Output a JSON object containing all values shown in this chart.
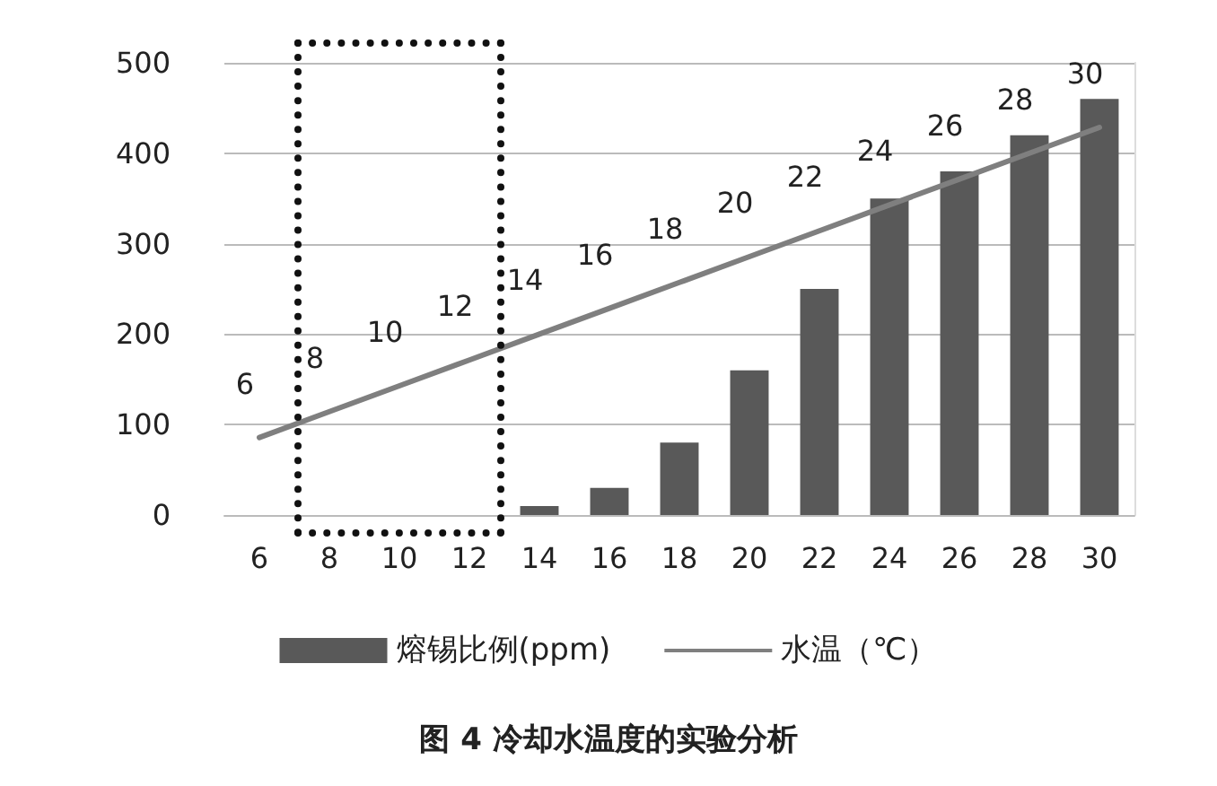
{
  "chart_data": {
    "type": "bar",
    "title": "图 4 冷却水温度的实验分析",
    "categories": [
      "6",
      "8",
      "10",
      "12",
      "14",
      "16",
      "18",
      "20",
      "22",
      "24",
      "26",
      "28",
      "30"
    ],
    "series": [
      {
        "name": "熔锡比例(ppm)",
        "color": "#595959",
        "values": [
          0,
          0,
          0,
          0,
          10,
          30,
          80,
          160,
          250,
          350,
          380,
          420,
          460
        ]
      },
      {
        "name": "水温（℃）",
        "type": "line",
        "axis": "y2",
        "color": "#7f7f7f",
        "values": [
          6,
          8,
          10,
          12,
          14,
          16,
          18,
          20,
          22,
          24,
          26,
          28,
          30
        ],
        "data_labels": true
      }
    ],
    "ylim": [
      0,
      500
    ],
    "yticks": [
      0,
      100,
      200,
      300,
      400,
      500
    ],
    "y2lim": [
      0,
      35
    ],
    "tick_labels": "x_y",
    "grid": "y",
    "legend": "bottom",
    "marker": "none"
  }
}
